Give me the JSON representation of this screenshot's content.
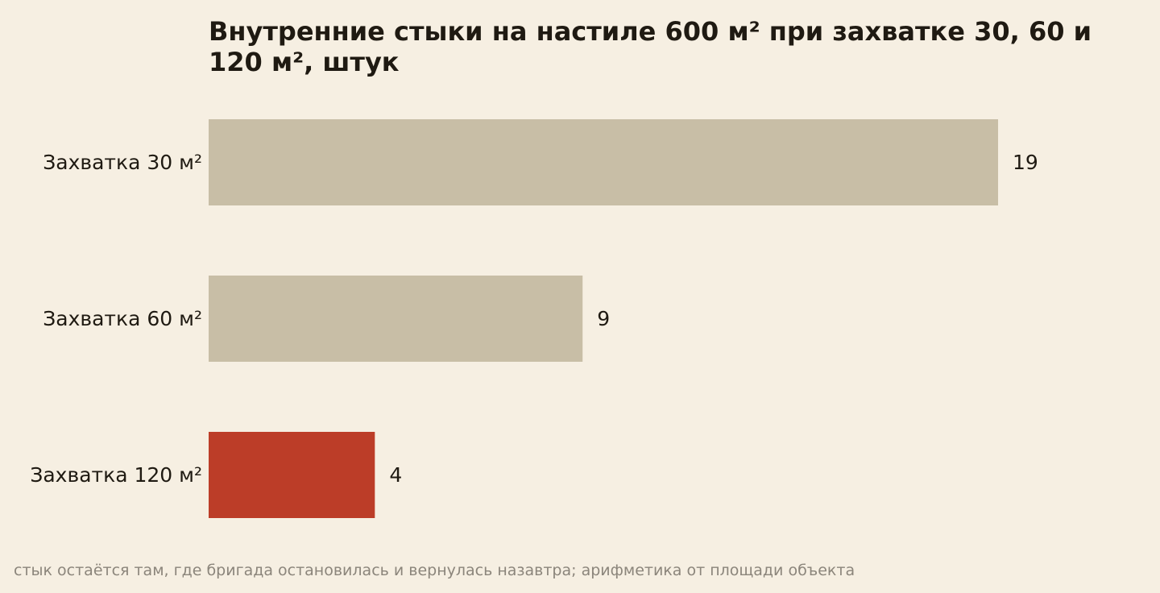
{
  "chart_data": {
    "type": "bar",
    "orientation": "horizontal",
    "title": "Внутренние стыки на настиле 600 м² при захватке 30, 60 и 120 м², штук",
    "categories": [
      "Захватка 30 м²",
      "Захватка 60 м²",
      "Захватка 120 м²"
    ],
    "values": [
      19,
      9,
      4
    ],
    "value_labels": [
      "19",
      "9",
      "4"
    ],
    "colors": [
      "#c8bea6",
      "#c8bea6",
      "#bc3d28"
    ],
    "xlim": [
      0,
      19
    ],
    "grid": false,
    "xlabel": "",
    "ylabel": ""
  },
  "footnote": "стык остаётся там, где бригада остановилась и вернулась назавтра; арифметика от площади объекта"
}
